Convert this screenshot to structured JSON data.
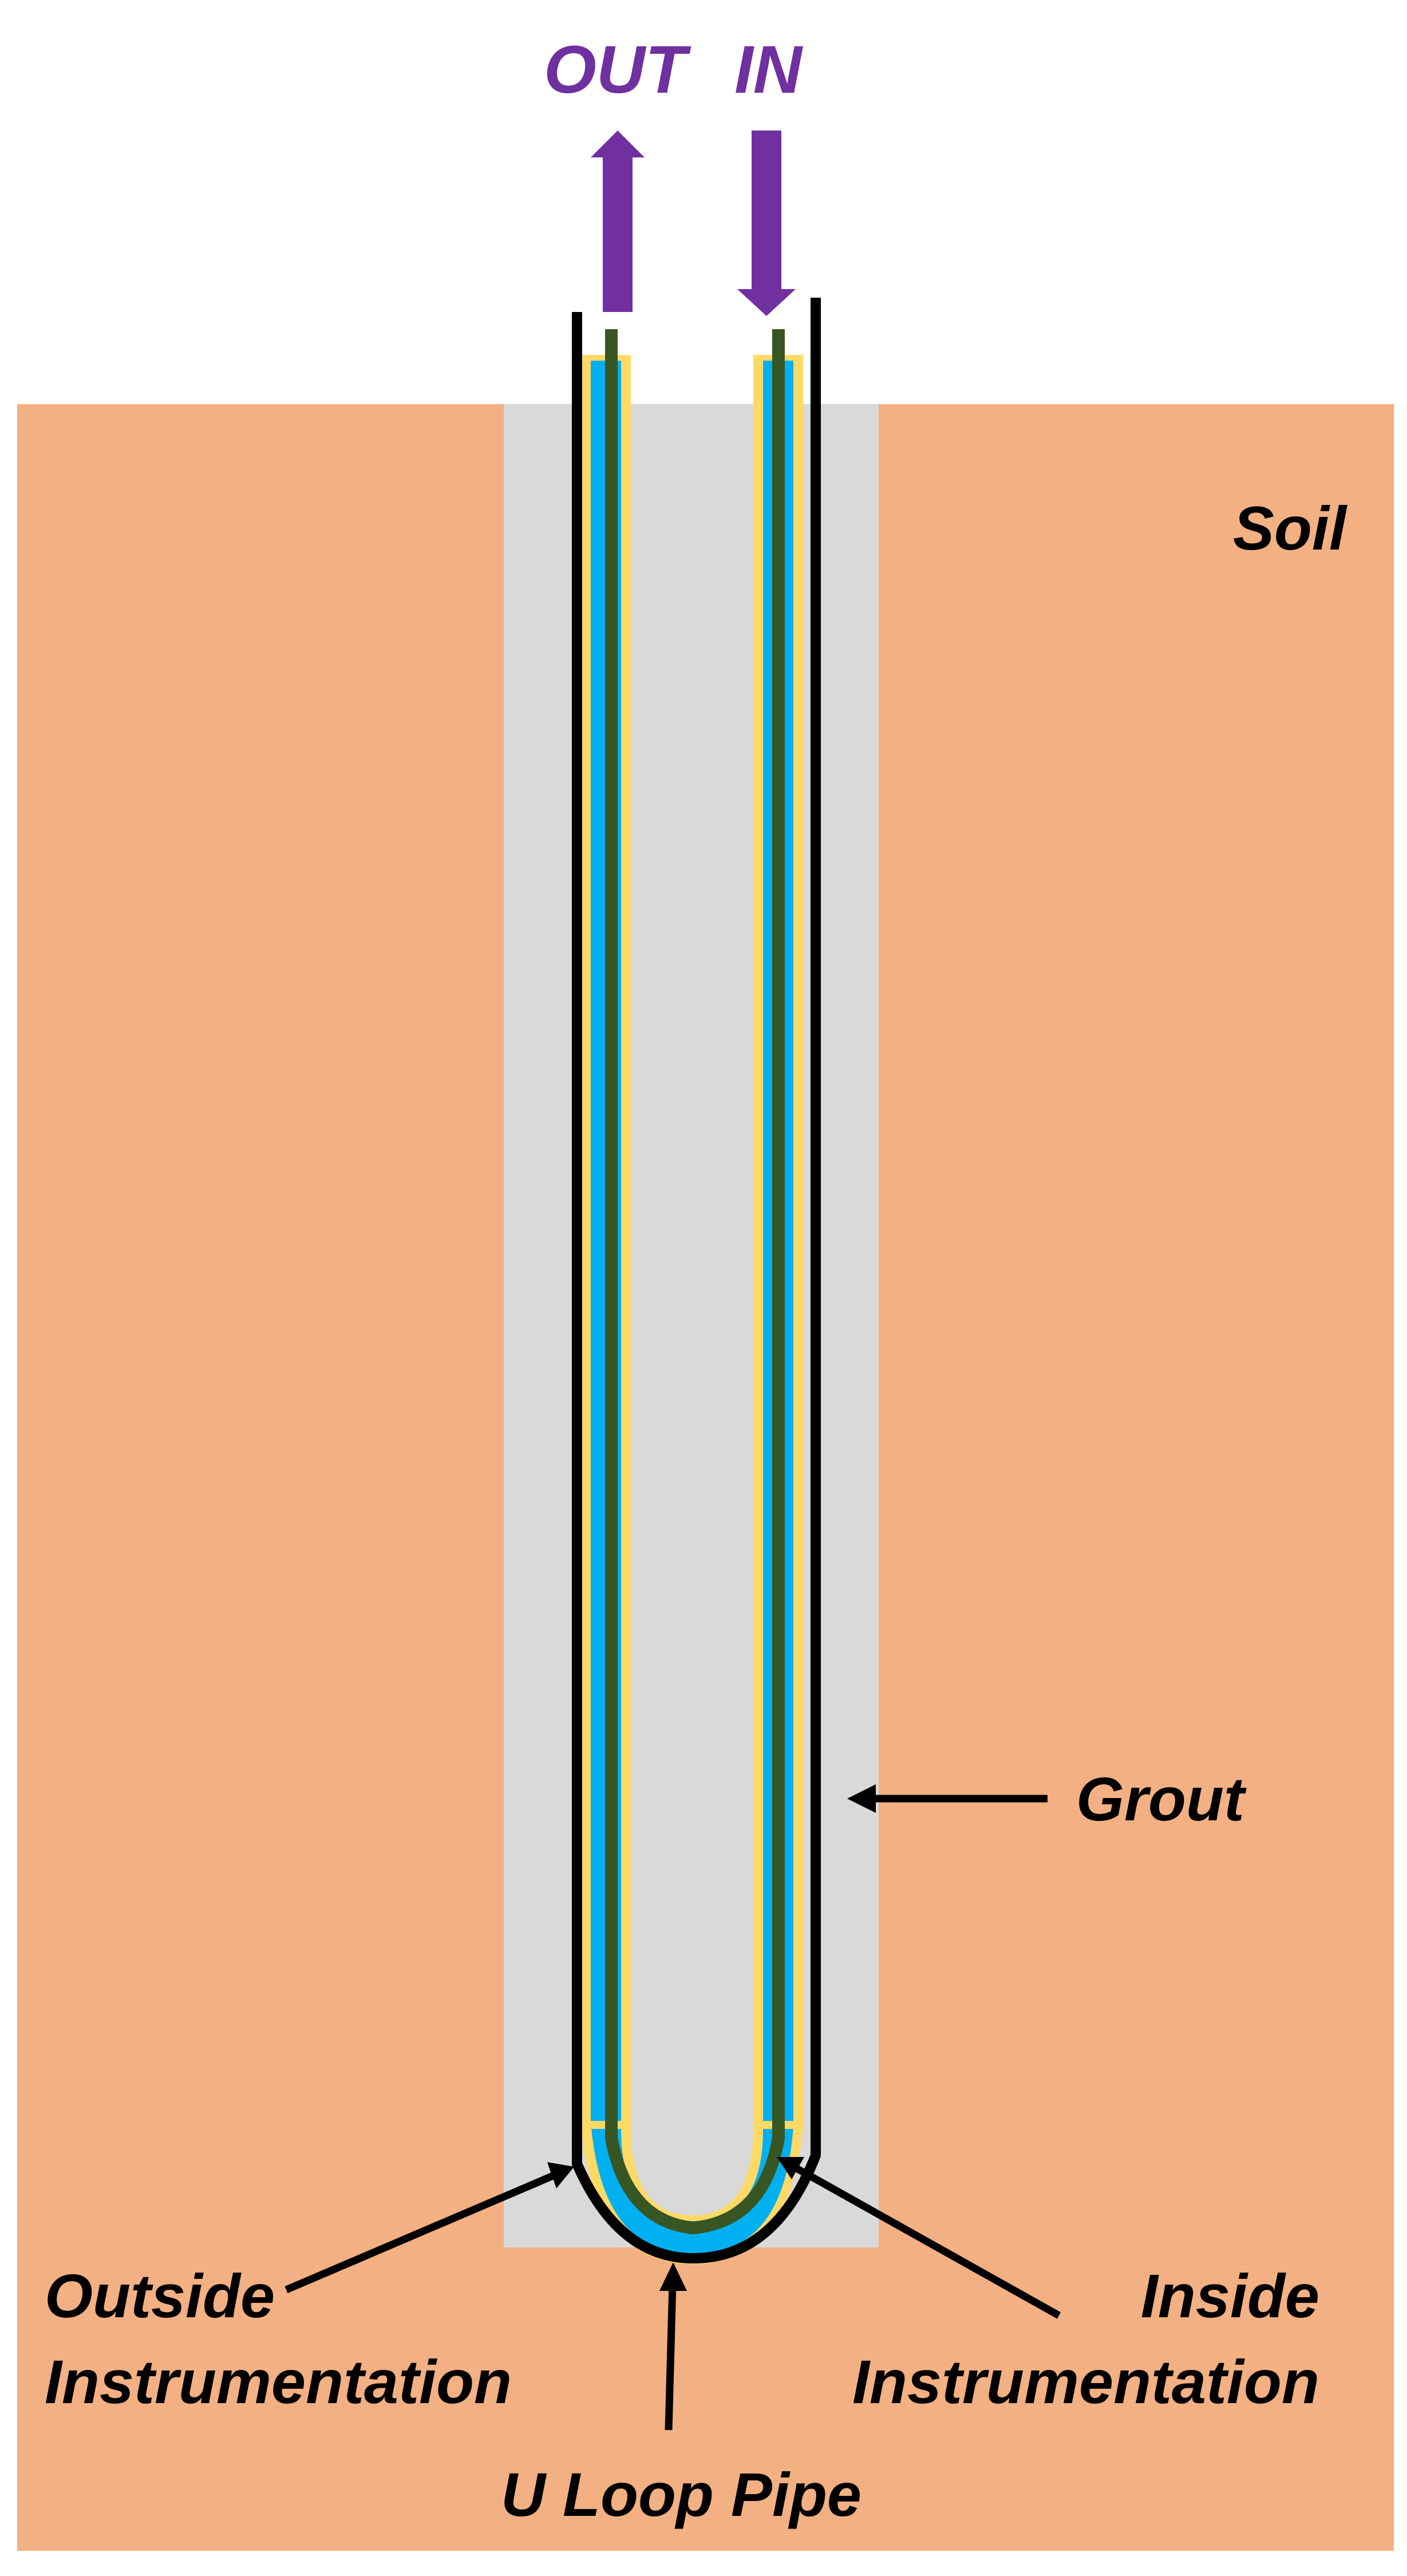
{
  "labels": {
    "out": "OUT",
    "in": "IN",
    "soil": "Soil",
    "grout": "Grout",
    "outside_1": "Outside",
    "outside_2": "Instrumentation",
    "inside_1": "Inside",
    "inside_2": "Instrumentation",
    "u_loop": "U Loop Pipe"
  },
  "colors": {
    "soil": "#f2b083",
    "grout": "#d9d9d9",
    "fluid": "#00b0f0",
    "pipe_wall": "#ffd966",
    "sensor_line": "#375623",
    "flow_arrow": "#7030a0",
    "outline": "#000000",
    "text": "#000000"
  }
}
